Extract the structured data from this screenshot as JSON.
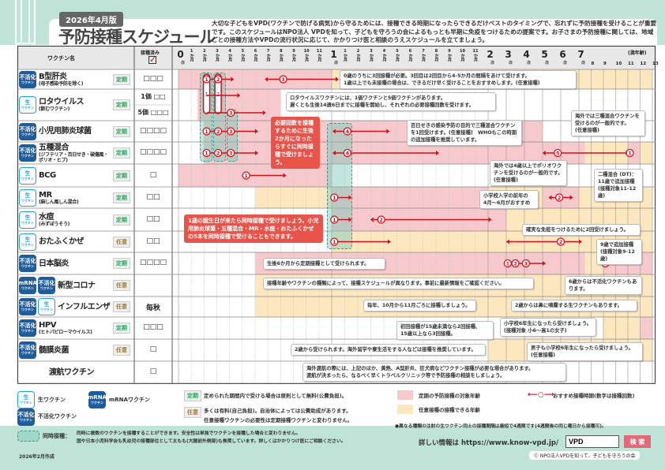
{
  "header": {
    "edition": "2026年4月版",
    "title": "予防接種スケジュール",
    "intro": "大切な子どもをVPD(ワクチンで防げる病気)から守るためには、接種できる時期になったらできるだけベストのタイミングで、忘れずに予防接種を受けることが重要です。このスケジュールはNPO法人 VPDを知って、子どもを守ろうの会によるもっとも早期に免疫をつけるための提案です。お子さまの予防接種に関しては、地域ごとの接種方法やVPDの流行状況に応じて、かかりつけ医と相談のうえスケジュールを立てましょう。"
  },
  "table": {
    "col_vaccine": "ワクチン名",
    "col_done": "接種済み",
    "done_icon": "checked-box",
    "unit_label": "(満年齢)"
  },
  "axis": [
    {
      "m": 0,
      "t": "0",
      "u": "歳"
    },
    {
      "m": 1,
      "t": "1",
      "u": "か月"
    },
    {
      "m": 2,
      "t": "2",
      "u": "か月"
    },
    {
      "m": 3,
      "t": "3",
      "u": "か月"
    },
    {
      "m": 4,
      "t": "4",
      "u": "か月"
    },
    {
      "m": 5,
      "t": "5",
      "u": "か月"
    },
    {
      "m": 6,
      "t": "6",
      "u": "か月"
    },
    {
      "m": 7,
      "t": "7",
      "u": "か月"
    },
    {
      "m": 8,
      "t": "8",
      "u": "か月"
    },
    {
      "m": 9,
      "t": "9",
      "u": "か月"
    },
    {
      "m": 10,
      "t": "10",
      "u": "か月"
    },
    {
      "m": 11,
      "t": "11",
      "u": "か月"
    },
    {
      "m": 12,
      "t": "1",
      "u": "歳"
    },
    {
      "m": 13,
      "t": "1",
      "u": "か月"
    },
    {
      "m": 14,
      "t": "2",
      "u": "か月"
    },
    {
      "m": 15,
      "t": "3",
      "u": "か月"
    },
    {
      "m": 16,
      "t": "4",
      "u": "か月"
    },
    {
      "m": 17,
      "t": "5",
      "u": "か月"
    },
    {
      "m": 18,
      "t": "6",
      "u": "か月"
    },
    {
      "m": 19,
      "t": "7",
      "u": "か月"
    },
    {
      "m": 20,
      "t": "8",
      "u": "か月"
    },
    {
      "m": 21,
      "t": "9",
      "u": "か月"
    },
    {
      "m": 22,
      "t": "10",
      "u": "か月"
    },
    {
      "m": 23,
      "t": "11",
      "u": "か月"
    },
    {
      "m": 24,
      "t": "2",
      "u": "歳"
    },
    {
      "m": 36,
      "t": "3",
      "u": "歳"
    },
    {
      "m": 48,
      "t": "4",
      "u": "歳"
    },
    {
      "m": 60,
      "t": "5",
      "u": "歳"
    },
    {
      "m": 72,
      "t": "6",
      "u": "歳"
    },
    {
      "m": 84,
      "t": "7",
      "u": "歳"
    },
    {
      "m": 96,
      "t": "8",
      "u": ""
    },
    {
      "m": 108,
      "t": "9",
      "u": ""
    },
    {
      "m": 120,
      "t": "10",
      "u": ""
    },
    {
      "m": 132,
      "t": "11",
      "u": ""
    },
    {
      "m": 144,
      "t": "12",
      "u": ""
    },
    {
      "m": 156,
      "t": "13",
      "u": ""
    }
  ],
  "badges": {
    "live": {
      "top": "生",
      "bottom": "ワクチン"
    },
    "inactive": {
      "top": "不活化",
      "bottom": "ワクチン"
    },
    "mrna": {
      "top": "mRNA",
      "bottom": "ワクチン"
    }
  },
  "vaccines": [
    {
      "badges": [
        "inactive"
      ],
      "name": "B型肝炎",
      "sub": "(母子感染予防を除く)",
      "type": "定期",
      "checks": [
        "□□□"
      ]
    },
    {
      "badges": [
        "live"
      ],
      "name": "ロタウイルス",
      "sub": "(飲むワクチン)",
      "type": "定期",
      "checks": [
        "1価 □□",
        "5価 □□□"
      ]
    },
    {
      "badges": [
        "inactive"
      ],
      "name": "小児用肺炎球菌",
      "sub": "",
      "type": "定期",
      "checks": [
        "□□□□"
      ]
    },
    {
      "badges": [
        "inactive"
      ],
      "name": "五種混合",
      "sub": "(ジフテリア・百日せき・破傷風・ポリオ・ヒブ)",
      "type": "定期",
      "checks": [
        "□□□□"
      ]
    },
    {
      "badges": [
        "live"
      ],
      "name": "BCG",
      "sub": "",
      "type": "定期",
      "checks": [
        "□"
      ]
    },
    {
      "badges": [
        "live"
      ],
      "name": "MR",
      "sub": "(麻しん風しん混合)",
      "type": "定期",
      "checks": [
        "□□"
      ]
    },
    {
      "badges": [
        "live"
      ],
      "name": "水痘",
      "sub": "(みずぼうそう)",
      "type": "定期",
      "checks": [
        "□□"
      ]
    },
    {
      "badges": [
        "live"
      ],
      "name": "おたふくかぜ",
      "sub": "",
      "type": "任意",
      "checks": [
        "□□"
      ]
    },
    {
      "badges": [
        "inactive"
      ],
      "name": "日本脳炎",
      "sub": "",
      "type": "定期",
      "checks": [
        "□□□□"
      ]
    },
    {
      "badges": [
        "mrna",
        "inactive"
      ],
      "name": "新型コロナ",
      "sub": "",
      "type": "任意",
      "checks": []
    },
    {
      "badges": [
        "inactive",
        "live"
      ],
      "name": "インフルエンザ",
      "sub": "",
      "type": "任意",
      "checks": [
        "毎秋"
      ]
    },
    {
      "badges": [
        "inactive"
      ],
      "name": "HPV",
      "sub": "(ヒトパピローマウイルス)",
      "type": "定期",
      "checks": [
        "□□□"
      ]
    },
    {
      "badges": [
        "inactive"
      ],
      "name": "髄膜炎菌",
      "sub": "",
      "type": "任意",
      "checks": [
        "□"
      ]
    },
    {
      "badges": [],
      "name": "渡航ワクチン",
      "sub": "",
      "type": "",
      "checks": [
        "□"
      ]
    }
  ],
  "colors": {
    "routine": "#f6c9cc",
    "optional": "#fde7bf",
    "arrow": "#d0101b",
    "simultaneous": "#9fd6cb",
    "teiki": "#2aa55a",
    "nini": "#a57a2a"
  },
  "bands": [
    {
      "row": 0,
      "from": 0,
      "to": 12,
      "kind": "routine"
    },
    {
      "row": 0,
      "from": 12,
      "to": 156,
      "kind": "optional"
    },
    {
      "row": 1,
      "from": 1.5,
      "to": 8,
      "kind": "routine"
    },
    {
      "row": 2,
      "from": 2,
      "to": 60,
      "kind": "routine"
    },
    {
      "row": 3,
      "from": 2,
      "to": 90,
      "kind": "routine"
    },
    {
      "row": 3,
      "from": 90,
      "to": 132,
      "kind": "optional"
    },
    {
      "row": 3,
      "from": 132,
      "to": 144,
      "kind": "routine"
    },
    {
      "row": 3,
      "from": 144,
      "to": 156,
      "kind": "optional"
    },
    {
      "row": 4,
      "from": 0,
      "to": 12,
      "kind": "routine"
    },
    {
      "row": 5,
      "from": 6,
      "to": 12,
      "kind": "optional"
    },
    {
      "row": 5,
      "from": 12,
      "to": 24,
      "kind": "routine"
    },
    {
      "row": 5,
      "from": 24,
      "to": 60,
      "kind": "optional"
    },
    {
      "row": 5,
      "from": 60,
      "to": 84,
      "kind": "routine"
    },
    {
      "row": 5,
      "from": 84,
      "to": 156,
      "kind": "optional"
    },
    {
      "row": 6,
      "from": 12,
      "to": 36,
      "kind": "routine"
    },
    {
      "row": 6,
      "from": 36,
      "to": 156,
      "kind": "optional"
    },
    {
      "row": 7,
      "from": 12,
      "to": 156,
      "kind": "optional"
    },
    {
      "row": 8,
      "from": 6,
      "to": 90,
      "kind": "routine"
    },
    {
      "row": 8,
      "from": 90,
      "to": 108,
      "kind": "optional"
    },
    {
      "row": 8,
      "from": 108,
      "to": 156,
      "kind": "routine"
    },
    {
      "row": 9,
      "from": 6,
      "to": 156,
      "kind": "optional"
    },
    {
      "row": 10,
      "from": 6,
      "to": 156,
      "kind": "optional"
    },
    {
      "row": 11,
      "from": 108,
      "to": 144,
      "kind": "optional"
    },
    {
      "row": 11,
      "from": 144,
      "to": 156,
      "kind": "routine"
    },
    {
      "row": 12,
      "from": 24,
      "to": 156,
      "kind": "optional"
    }
  ],
  "arrows": [
    {
      "row": 0,
      "y": 0.5,
      "from": 2.2,
      "to": 4.1,
      "left": false,
      "doses": [
        {
          "n": "1",
          "m": 2.2
        },
        {
          "n": "2",
          "m": 3.1
        }
      ]
    },
    {
      "row": 0,
      "y": 0.5,
      "from": 7,
      "to": 12.3,
      "left": true,
      "doses": [
        {
          "n": "3",
          "m": 8.2
        }
      ]
    },
    {
      "row": 1,
      "y": 0.2,
      "from": 2.2,
      "to": 4.6,
      "left": false,
      "doses": []
    },
    {
      "row": 1,
      "y": 0.75,
      "from": 2.2,
      "to": 6.6,
      "left": false,
      "doses": [
        {
          "n": "3",
          "m": 4.1
        }
      ]
    },
    {
      "row": 2,
      "y": 0.5,
      "from": 2.2,
      "to": 6,
      "left": false,
      "doses": [
        {
          "n": "1",
          "m": 2.2
        },
        {
          "n": "2",
          "m": 3.1
        },
        {
          "n": "3",
          "m": 4.1
        }
      ]
    },
    {
      "row": 2,
      "y": 0.5,
      "from": 12.3,
      "to": 16.2,
      "left": true,
      "doses": [
        {
          "n": "4",
          "m": 13.2
        }
      ]
    },
    {
      "row": 3,
      "y": 0.5,
      "from": 2.2,
      "to": 6,
      "left": false,
      "doses": [
        {
          "n": "1",
          "m": 2.2
        },
        {
          "n": "2",
          "m": 3.1
        },
        {
          "n": "3",
          "m": 4.1
        }
      ]
    },
    {
      "row": 3,
      "y": 0.5,
      "from": 12.3,
      "to": 20,
      "left": true,
      "doses": [
        {
          "n": "4",
          "m": 13.2
        }
      ]
    },
    {
      "row": 3,
      "y": 0.5,
      "from": 62,
      "to": 130,
      "left": true,
      "doses": [
        {
          "n": "5",
          "m": 70
        },
        {
          "n": "1",
          "m": 134
        }
      ]
    },
    {
      "row": 4,
      "y": 0.5,
      "from": 5.3,
      "to": 8.2,
      "left": false,
      "doses": [
        {
          "n": "1",
          "m": 5.3
        }
      ]
    },
    {
      "row": 5,
      "y": 0.5,
      "from": 12.2,
      "to": 13.3,
      "left": false,
      "doses": [
        {
          "n": "1",
          "m": 12.2
        }
      ]
    },
    {
      "row": 5,
      "y": 0.5,
      "from": 66,
      "to": 78,
      "left": true,
      "doses": [
        {
          "n": "2",
          "m": 71
        }
      ]
    },
    {
      "row": 6,
      "y": 0.5,
      "from": 12.2,
      "to": 13.3,
      "left": false,
      "doses": [
        {
          "n": "1",
          "m": 12.2
        }
      ]
    },
    {
      "row": 6,
      "y": 0.5,
      "from": 15.2,
      "to": 24.3,
      "left": true,
      "doses": [
        {
          "n": "2",
          "m": 15.8
        }
      ]
    },
    {
      "row": 7,
      "y": 0.5,
      "from": 12.2,
      "to": 16.3,
      "left": false,
      "doses": [
        {
          "n": "1",
          "m": 12.2
        }
      ]
    },
    {
      "row": 7,
      "y": 0.5,
      "from": 38,
      "to": 84,
      "left": true,
      "doses": [
        {
          "n": "2",
          "m": 72
        }
      ]
    },
    {
      "row": 8,
      "y": 0.5,
      "from": 36,
      "to": 60,
      "left": false,
      "doses": [
        {
          "n": "1",
          "m": 37
        },
        {
          "n": "2",
          "m": 42
        },
        {
          "n": "3",
          "m": 49
        }
      ]
    },
    {
      "row": 8,
      "y": 0.5,
      "from": 110,
      "to": 110,
      "left": false,
      "doses": [
        {
          "n": "4",
          "m": 110
        }
      ]
    }
  ],
  "callouts": {
    "two_months": "必要回数を接種するために生後2か月になったらすぐに同時接種で受けましょう。",
    "one_year": "1歳の誕生日が来たら同時接種で受けましょう。小児用肺炎球菌・五種混合・MR・水痘・おたふくかぜの5本を同時接種で受けることもできます。"
  },
  "notes": {
    "hepb": "0歳のうちに3回接種が必要。3回目は2回目から4-5か月の間隔をあけて受けます。\n1歳以上でも未接種の場合は、できるだけ早く受けることをおすすめします。(任意接種)",
    "rota": "ロタウイルスワクチンには、1価ワクチンと5価ワクチンがあります。\n遅くとも生後14週6日までに接種を開始し、それぞれの必要接種回数を受けます。",
    "pertussis": "百日せきの感染予防の目的で三種混合ワクチンを1回受けます。(任意接種)　WHOもこの時期の追加接種を推奨しています。",
    "tdap": "海外では三種混合ワクチンを受けるのが一般的です。\n(任意接種)",
    "polio": "海外では4歳以上でポリオワクチンを受けるのが一般的です。(任意接種)",
    "dt": "二種混合 (DT)：\n11歳で追加接種\n(接種対象11-12歳)",
    "mr2": "小学校入学の前年の\n4月～6月がおすすめ",
    "mumps": "確実な免疫をつけるために2回受けましょう。",
    "je9": "9歳で追加接種\n(接種対象9-12歳)",
    "je": "生後6か月から定期接種として受けられます。",
    "covid": "接種年齢やワクチンの種類によって、接種スケジュールが異なります。事前に最新情報をご確認ください。",
    "covid6": "6歳からは不活化ワクチンもあります。",
    "flu": "毎年、10月から11月ごろに接種しましょう。",
    "flu2": "2歳からは鼻に噴霧する生ワクチンもあります。",
    "hpv1": "初回接種が15歳未満なら2回接種、\n15歳以上なら3回接種。",
    "hpv2": "小学校6年生になったら受けましょう。\n(接種対象 小6～高1の女子)",
    "hpv3": "男子も小学校6年生になったら受けましょう。\n(任意接種)",
    "mening": "2歳から受けられます。海外留学や寮生活をする人などは接種を推奨しています。",
    "travel": "海外渡航の際には、上記のほか、黄熱、A型肝炎、狂犬病などワクチン接種が必要な場合があります。\n渡航が決まったら、なるべく早くトラベルクリニック等で予防接種の相談をしましょう。"
  },
  "legend": {
    "live": "生ワクチン",
    "mrna": "mRNAワクチン",
    "inactive": "不活化ワクチン",
    "teiki_badge": "定期",
    "teiki": "定められた期間内で受ける場合は原則として無料(公費負担)。",
    "nini_badge": "任意",
    "nini": "多くは有料(自己負担)。自治体によっては公費助成があります。\n任意接種ワクチンの必要性は定期接種ワクチンと変わりません。",
    "routine": "定期の予防接種の対象年齢",
    "optional": "任意接種の接種できる年齢",
    "arrow": "おすすめ接種時期(数字は接種回数)",
    "simul_label": "同時接種：",
    "simul": "同時に複数のワクチンを接種することができます。安全性は単独でワクチンを接種した場合と変わりません。\n国や日本小児科学会も乳幼児の接種部位として太もも(大腿前外側部)も推奨しています。詳しくはかかりつけ医にご相談ください。",
    "interval": "●異なる種類の注射の生ワクチン同士の接種間隔は最短で4週間です(4週間後の同じ曜日から接種可)。"
  },
  "footer": {
    "info_label": "詳しい情報は https://www.know-vpd.jp/",
    "search_value": "VPD",
    "search_button": "検 索",
    "created": "2026年2月作成",
    "copyright": "Ⓒ NPO法人VPDを知って、子どもを守ろうの会"
  }
}
